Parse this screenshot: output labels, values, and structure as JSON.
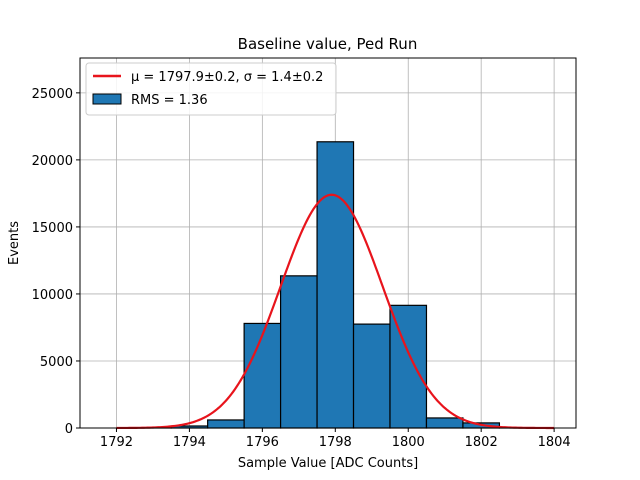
{
  "chart_data": {
    "type": "bar",
    "title": "Baseline value, Ped Run",
    "xlabel": "Sample Value [ADC Counts]",
    "ylabel": "Events",
    "xlim": [
      1791,
      1804.6
    ],
    "ylim": [
      0,
      27600
    ],
    "xticks": [
      1792,
      1794,
      1796,
      1798,
      1800,
      1802,
      1804
    ],
    "yticks": [
      0,
      5000,
      10000,
      15000,
      20000,
      25000
    ],
    "grid": true,
    "legend_position": "top-left",
    "bins": [
      {
        "x0": 1791.5,
        "x1": 1792.5,
        "count": 0
      },
      {
        "x0": 1792.5,
        "x1": 1793.5,
        "count": 30
      },
      {
        "x0": 1793.5,
        "x1": 1794.5,
        "count": 150
      },
      {
        "x0": 1794.5,
        "x1": 1795.5,
        "count": 600
      },
      {
        "x0": 1795.5,
        "x1": 1796.5,
        "count": 7800
      },
      {
        "x0": 1796.5,
        "x1": 1797.5,
        "count": 11350
      },
      {
        "x0": 1797.5,
        "x1": 1798.5,
        "count": 21350
      },
      {
        "x0": 1798.5,
        "x1": 1799.5,
        "count": 7750
      },
      {
        "x0": 1799.5,
        "x1": 1800.5,
        "count": 9150
      },
      {
        "x0": 1800.5,
        "x1": 1801.5,
        "count": 750
      },
      {
        "x0": 1801.5,
        "x1": 1802.5,
        "count": 380
      },
      {
        "x0": 1802.5,
        "x1": 1803.5,
        "count": 30
      }
    ],
    "fit": {
      "type": "gaussian",
      "mu": 1797.9,
      "sigma": 1.4,
      "amplitude": 17400,
      "x_range": [
        1792,
        1804
      ]
    },
    "legend": [
      {
        "text": "μ = 1797.9±0.2, σ = 1.4±0.2",
        "kind": "line",
        "color": "#e8141c"
      },
      {
        "text": "RMS = 1.36",
        "kind": "patch",
        "color": "#1f77b4"
      }
    ],
    "colors": {
      "bar": "#1f77b4",
      "bar_edge": "#000000",
      "fit": "#e8141c",
      "grid": "#b0b0b0"
    }
  }
}
